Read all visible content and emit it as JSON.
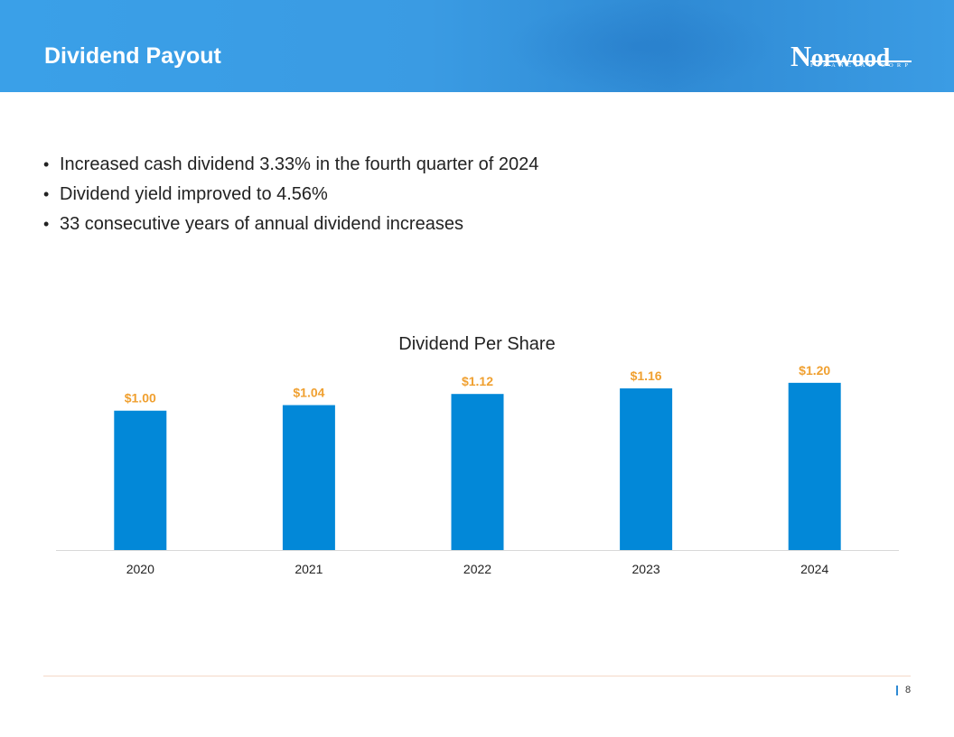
{
  "header": {
    "title": "Dividend Payout",
    "logo": {
      "main_first": "N",
      "main_rest": "orwood",
      "sub": "FINANCIAL CORP"
    }
  },
  "bullets": [
    "Increased cash dividend 3.33% in the fourth quarter of 2024",
    "Dividend yield improved to 4.56%",
    "33 consecutive years of annual dividend increases"
  ],
  "bullet_glyph": "•",
  "colors": {
    "bar": "#0288d8",
    "data_label": "#f0a030",
    "title_text": "#222222",
    "axis_line": "#d9d9d9"
  },
  "chart_data": {
    "type": "bar",
    "title": "Dividend Per Share",
    "categories": [
      "2020",
      "2021",
      "2022",
      "2023",
      "2024"
    ],
    "values": [
      1.0,
      1.04,
      1.12,
      1.16,
      1.2
    ],
    "labels": [
      "$1.00",
      "$1.04",
      "$1.12",
      "$1.16",
      "$1.20"
    ],
    "xlabel": "",
    "ylabel": "",
    "ylim": [
      0,
      1.4
    ],
    "grid": false,
    "legend": "none"
  },
  "footer": {
    "page_number": "8"
  }
}
